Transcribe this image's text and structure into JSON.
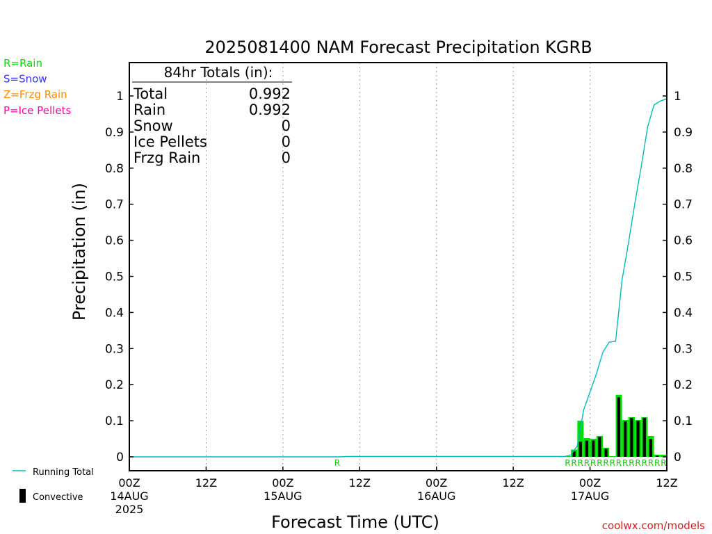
{
  "chart_data": {
    "type": "bar",
    "title": "2025081400 NAM Forecast Precipitation KGRB",
    "xlabel": "Forecast Time (UTC)",
    "ylabel": "Precipitation (in)",
    "ylim": [
      0,
      1.0
    ],
    "yticks": [
      0,
      0.1,
      0.2,
      0.3,
      0.4,
      0.5,
      0.6,
      0.7,
      0.8,
      0.9,
      1
    ],
    "ytick_labels": [
      "0",
      "0.1",
      "0.2",
      "0.3",
      "0.4",
      "0.5",
      "0.6",
      "0.7",
      "0.8",
      "0.9",
      "1"
    ],
    "xlim_hours": [
      0,
      84
    ],
    "xticks": [
      {
        "hour": 0,
        "lines": [
          "00Z",
          "14AUG",
          "2025"
        ]
      },
      {
        "hour": 12,
        "lines": [
          "12Z"
        ]
      },
      {
        "hour": 24,
        "lines": [
          "00Z",
          "15AUG"
        ]
      },
      {
        "hour": 36,
        "lines": [
          "12Z"
        ]
      },
      {
        "hour": 48,
        "lines": [
          "00Z",
          "16AUG"
        ]
      },
      {
        "hour": 60,
        "lines": [
          "12Z"
        ]
      },
      {
        "hour": 72,
        "lines": [
          "00Z",
          "17AUG"
        ]
      },
      {
        "hour": 84,
        "lines": [
          "12Z"
        ]
      }
    ],
    "grid": "vertical dotted at 12-hour intervals",
    "series": [
      {
        "name": "Rain",
        "kind": "bar",
        "color": "#00dd00",
        "points": [
          {
            "h": 69,
            "v": 0.001
          },
          {
            "h": 70,
            "v": 0.02
          },
          {
            "h": 71,
            "v": 0.1
          },
          {
            "h": 72,
            "v": 0.052
          },
          {
            "h": 73,
            "v": 0.05
          },
          {
            "h": 74,
            "v": 0.058
          },
          {
            "h": 75,
            "v": 0.025
          },
          {
            "h": 76,
            "v": 0.001
          },
          {
            "h": 77,
            "v": 0.172
          },
          {
            "h": 78,
            "v": 0.102
          },
          {
            "h": 79,
            "v": 0.11
          },
          {
            "h": 80,
            "v": 0.102
          },
          {
            "h": 81,
            "v": 0.11
          },
          {
            "h": 82,
            "v": 0.058
          },
          {
            "h": 83,
            "v": 0.006
          },
          {
            "h": 84,
            "v": 0.006
          }
        ]
      },
      {
        "name": "Convective",
        "kind": "bar",
        "color": "#000000",
        "points": [
          {
            "h": 70,
            "v": 0.015
          },
          {
            "h": 71,
            "v": 0.042
          },
          {
            "h": 72,
            "v": 0.045
          },
          {
            "h": 73,
            "v": 0.045
          },
          {
            "h": 74,
            "v": 0.055
          },
          {
            "h": 75,
            "v": 0.022
          },
          {
            "h": 77,
            "v": 0.165
          },
          {
            "h": 78,
            "v": 0.098
          },
          {
            "h": 79,
            "v": 0.108
          },
          {
            "h": 80,
            "v": 0.1
          },
          {
            "h": 81,
            "v": 0.108
          },
          {
            "h": 82,
            "v": 0.05
          },
          {
            "h": 83,
            "v": 0.003
          }
        ]
      },
      {
        "name": "Running Total",
        "kind": "line",
        "color": "#00bbbb",
        "points": [
          {
            "h": 0,
            "v": 0
          },
          {
            "h": 33,
            "v": 0
          },
          {
            "h": 34,
            "v": 0.001
          },
          {
            "h": 68,
            "v": 0.001
          },
          {
            "h": 69,
            "v": 0.005
          },
          {
            "h": 70,
            "v": 0.03
          },
          {
            "h": 71,
            "v": 0.13
          },
          {
            "h": 72,
            "v": 0.18
          },
          {
            "h": 73,
            "v": 0.23
          },
          {
            "h": 74,
            "v": 0.29
          },
          {
            "h": 75,
            "v": 0.318
          },
          {
            "h": 76,
            "v": 0.32
          },
          {
            "h": 77,
            "v": 0.49
          },
          {
            "h": 78,
            "v": 0.592
          },
          {
            "h": 79,
            "v": 0.702
          },
          {
            "h": 80,
            "v": 0.804
          },
          {
            "h": 81,
            "v": 0.914
          },
          {
            "h": 82,
            "v": 0.975
          },
          {
            "h": 83,
            "v": 0.986
          },
          {
            "h": 84,
            "v": 0.992
          }
        ]
      }
    ],
    "type_markers": {
      "color": "#00cc00",
      "points": [
        {
          "h": 33,
          "label": "R"
        },
        {
          "h": 69,
          "label": "R"
        },
        {
          "h": 70,
          "label": "R"
        },
        {
          "h": 71,
          "label": "R"
        },
        {
          "h": 72,
          "label": "R"
        },
        {
          "h": 73,
          "label": "R"
        },
        {
          "h": 74,
          "label": "R"
        },
        {
          "h": 75,
          "label": "R"
        },
        {
          "h": 76,
          "label": "R"
        },
        {
          "h": 77,
          "label": "R"
        },
        {
          "h": 78,
          "label": "R"
        },
        {
          "h": 79,
          "label": "R"
        },
        {
          "h": 80,
          "label": "R"
        },
        {
          "h": 81,
          "label": "R"
        },
        {
          "h": 82,
          "label": "R"
        },
        {
          "h": 83,
          "label": "R"
        },
        {
          "h": 84,
          "label": "R"
        }
      ]
    },
    "totals_box": {
      "header": "84hr Totals (in):",
      "rows": [
        {
          "label": "Total",
          "value": "0.992"
        },
        {
          "label": "Rain",
          "value": "0.992"
        },
        {
          "label": "Snow",
          "value": "0"
        },
        {
          "label": "Ice Pellets",
          "value": "0"
        },
        {
          "label": "Frzg Rain",
          "value": "0"
        }
      ]
    },
    "type_legend": [
      {
        "text": "R=Rain",
        "color": "#00dd00"
      },
      {
        "text": "S=Snow",
        "color": "#3333ff"
      },
      {
        "text": "Z=Frzg Rain",
        "color": "#ff8800"
      },
      {
        "text": "P=Ice Pellets",
        "color": "#ff00aa"
      }
    ],
    "series_legend": [
      {
        "text": "Running Total",
        "color": "#00bbbb",
        "kind": "line"
      },
      {
        "text": "Convective",
        "color": "#000000",
        "kind": "bar"
      }
    ],
    "credit": "coolwx.com/models"
  }
}
